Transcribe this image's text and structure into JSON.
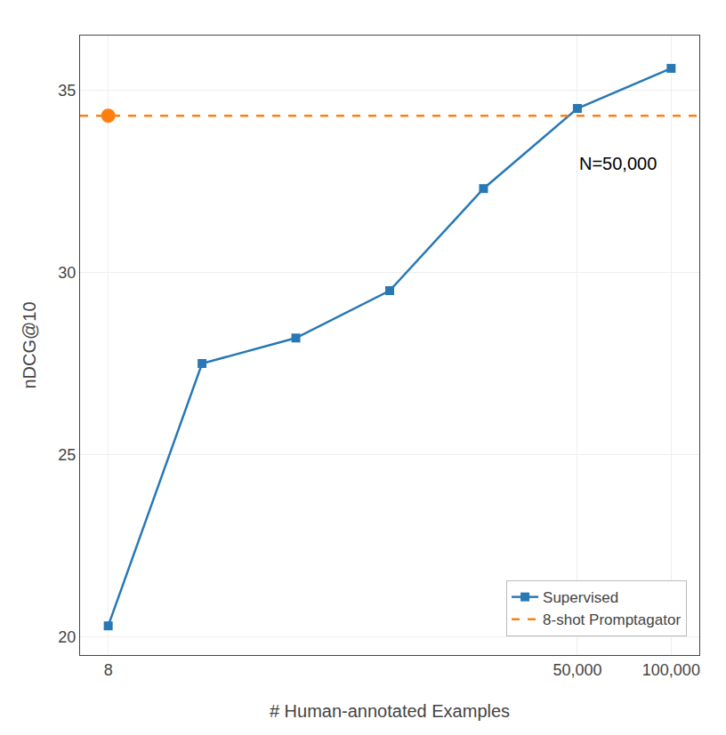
{
  "chart_data": {
    "type": "line",
    "xlabel": "# Human-annotated Examples",
    "ylabel": "nDCG@10",
    "categories": [
      "8",
      null,
      null,
      null,
      null,
      "50,000",
      "100,000"
    ],
    "series": [
      {
        "name": "Supervised",
        "color": "#2878b5",
        "marker": "square",
        "values": [
          20.3,
          27.5,
          28.2,
          29.5,
          32.3,
          34.5,
          35.6
        ]
      },
      {
        "name": "8-shot Promptagator",
        "color": "#ff7f0e",
        "type": "hline",
        "line_style": "dashed",
        "marker": "circle",
        "values": [
          34.3,
          null,
          null,
          null,
          null,
          null,
          null
        ]
      }
    ],
    "annotations": [
      {
        "text": "N=50,000",
        "x": "50,000",
        "y": 33.3
      }
    ],
    "ylim": [
      19.5,
      36.5
    ],
    "yticks": [
      20,
      25,
      30,
      35
    ],
    "grid": true,
    "legend": "lower right"
  }
}
